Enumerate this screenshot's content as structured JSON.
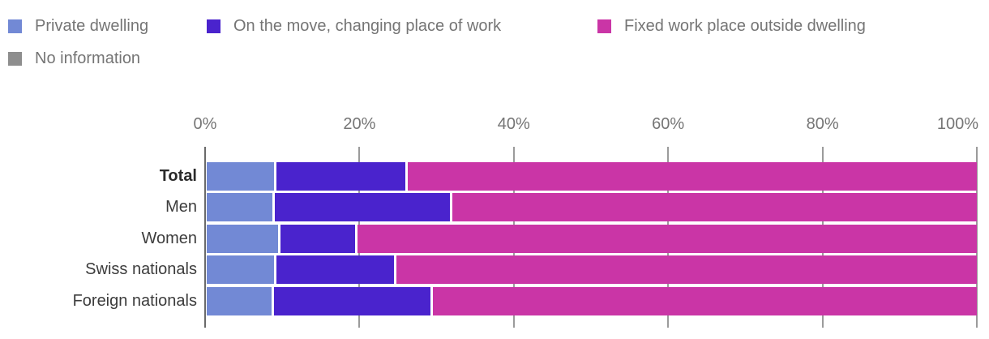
{
  "legend": {
    "items": [
      {
        "label": "Private dwelling",
        "color": "#7289d5"
      },
      {
        "label": "On the move, changing place of work",
        "color": "#4a23cd"
      },
      {
        "label": "Fixed work place outside dwelling",
        "color": "#ca35a6"
      },
      {
        "label": "No information",
        "color": "#8e8e8e"
      }
    ]
  },
  "chart_data": {
    "type": "bar",
    "orientation": "horizontal",
    "stacked": true,
    "unit": "%",
    "categories": [
      "Total",
      "Men",
      "Women",
      "Swiss nationals",
      "Foreign nationals"
    ],
    "emphasized_category": "Total",
    "series": [
      {
        "name": "Private dwelling",
        "color": "#7289d5",
        "values": [
          9.1,
          8.8,
          9.6,
          9.1,
          8.7
        ]
      },
      {
        "name": "On the move, changing place of work",
        "color": "#4a23cd",
        "values": [
          17.0,
          23.1,
          10.0,
          15.5,
          20.7
        ]
      },
      {
        "name": "Fixed work place outside dwelling",
        "color": "#ca35a6",
        "values": [
          73.9,
          68.1,
          80.4,
          75.4,
          70.6
        ]
      },
      {
        "name": "No information",
        "color": "#8e8e8e",
        "values": [
          0,
          0,
          0,
          0,
          0
        ]
      }
    ],
    "x_ticks": [
      "0%",
      "20%",
      "40%",
      "60%",
      "80%",
      "100%"
    ],
    "xlim": [
      0,
      100
    ],
    "grid": true,
    "legend_position": "top"
  },
  "colors": {
    "grid": "#9b9b9b",
    "axis_line": "#6a6a6a",
    "tick_text": "#757575",
    "legend_text": "#757575",
    "category_text": "#3c3c3c"
  }
}
